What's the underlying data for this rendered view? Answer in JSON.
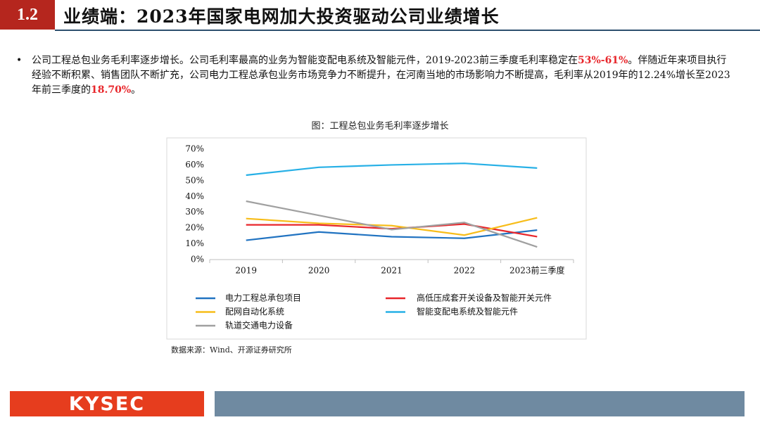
{
  "header": {
    "number": "1.2",
    "title": "业绩端：2023年国家电网加大投资驱动公司业绩增长"
  },
  "bullet": [
    {
      "text": "公司工程总包业务毛利率逐步增长。公司毛利率最高的业务为智能变配电系统及智能元件，2019-2023前三季度毛利率稳定在"
    },
    {
      "text": "53%-61%",
      "color": "#e8262b"
    },
    {
      "text": "。伴随近年来项目执行经验不断积累、销售团队不断扩充，公司电力工程总承包业务市场竞争力不断提升，在河南当地的市场影响力不断提高，毛利率从2019年的12.24%增长至2023年前三季度的"
    },
    {
      "text": "18.70%",
      "color": "#e8262b"
    },
    {
      "text": "。"
    }
  ],
  "chart_data": {
    "type": "line",
    "title": "图：工程总包业务毛利率逐步增长",
    "categories": [
      "2019",
      "2020",
      "2021",
      "2022",
      "2023前三季度"
    ],
    "ylim": [
      0,
      70
    ],
    "yticks": [
      {
        "value": 0,
        "label": "0%"
      },
      {
        "value": 10,
        "label": "10%"
      },
      {
        "value": 20,
        "label": "20%"
      },
      {
        "value": 30,
        "label": "30%"
      },
      {
        "value": 40,
        "label": "40%"
      },
      {
        "value": 50,
        "label": "50%"
      },
      {
        "value": 60,
        "label": "60%"
      },
      {
        "value": 70,
        "label": "70%"
      }
    ],
    "series": [
      {
        "name": "电力工程总承包项目",
        "color": "#2173c1",
        "values": [
          12.24,
          17.5,
          14.5,
          13.5,
          18.7
        ]
      },
      {
        "name": "高低压成套开关设备及智能开关元件",
        "color": "#e8262b",
        "values": [
          22,
          22,
          19.5,
          22.5,
          14.5
        ]
      },
      {
        "name": "配网自动化系统",
        "color": "#f7bd1a",
        "values": [
          26,
          23,
          21.5,
          15.5,
          26.5
        ]
      },
      {
        "name": "智能变配电系统及智能元件",
        "color": "#27b0e6",
        "values": [
          53.5,
          58.5,
          60,
          61,
          58
        ]
      },
      {
        "name": "轨道交通电力设备",
        "color": "#a0a0a0",
        "values": [
          37,
          28,
          19,
          23.5,
          8
        ]
      }
    ]
  },
  "source": "数据来源：Wind、开源证券研究所",
  "footer": {
    "logo": "KYSEC"
  }
}
